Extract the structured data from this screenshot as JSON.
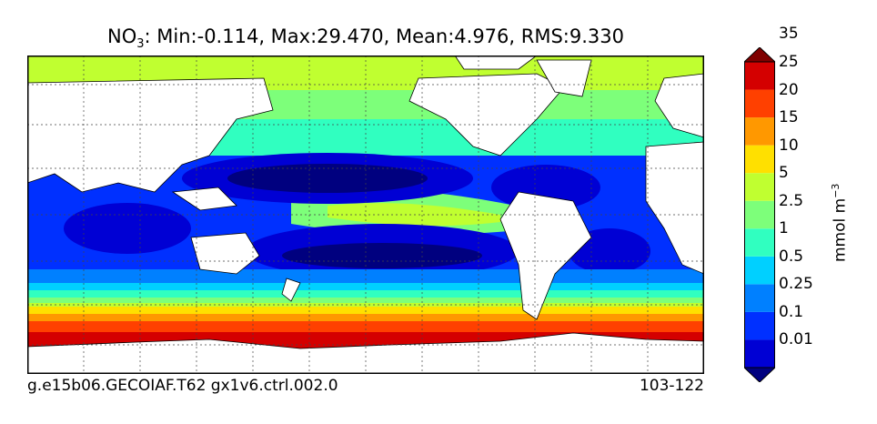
{
  "title": {
    "prefix": "NO",
    "subscript": "3",
    "stats": ": Min:-0.114, Max:29.470, Mean:4.976, RMS:9.330"
  },
  "footer": {
    "case_name": "g.e15b06.GECOIAF.T62 gx1v6.ctrl.002.0",
    "years": "103-122"
  },
  "colorbar": {
    "unit_base": "mmol m",
    "unit_exp": "−3",
    "levels": [
      "0.01",
      "0.1",
      "0.25",
      "0.5",
      "1",
      "2.5",
      "5",
      "10",
      "15",
      "20",
      "25",
      "35"
    ],
    "colors": [
      "#00007f",
      "#0000d4",
      "#0030ff",
      "#0080ff",
      "#00d0ff",
      "#30ffc0",
      "#7dff7a",
      "#c0ff30",
      "#ffe000",
      "#ff9800",
      "#ff4000",
      "#d40000",
      "#7f0000"
    ]
  },
  "map_colors": {
    "ocean_deep": "#00007f",
    "land": "#ffffff"
  }
}
